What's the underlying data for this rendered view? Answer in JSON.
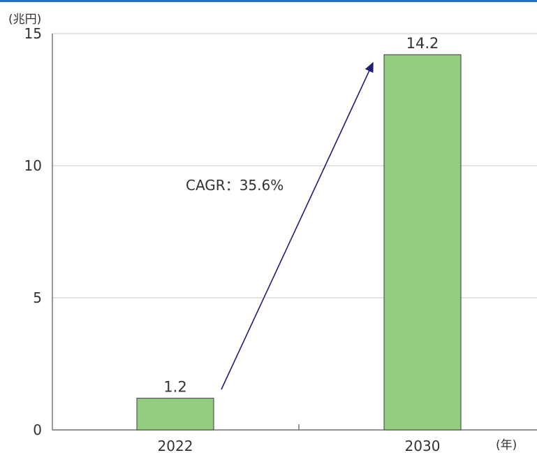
{
  "chart_data": {
    "type": "bar",
    "categories": [
      "2022",
      "2030"
    ],
    "values": [
      1.2,
      14.2
    ],
    "data_labels": [
      "1.2",
      "14.2"
    ],
    "ylim": [
      0,
      15
    ],
    "yticks": [
      "0",
      "5",
      "10",
      "15"
    ],
    "y_unit": "(兆円)",
    "x_unit": "(年)",
    "annotation": "CAGR：35.6%",
    "grid": true,
    "legend": "none"
  },
  "colors": {
    "bar_fill": "#93cd80",
    "bar_stroke": "#3a3a3a",
    "arrow": "#1e1e78",
    "grid": "#c8c8c8",
    "axis": "#555555",
    "top_rule": "#2d6fb8"
  }
}
